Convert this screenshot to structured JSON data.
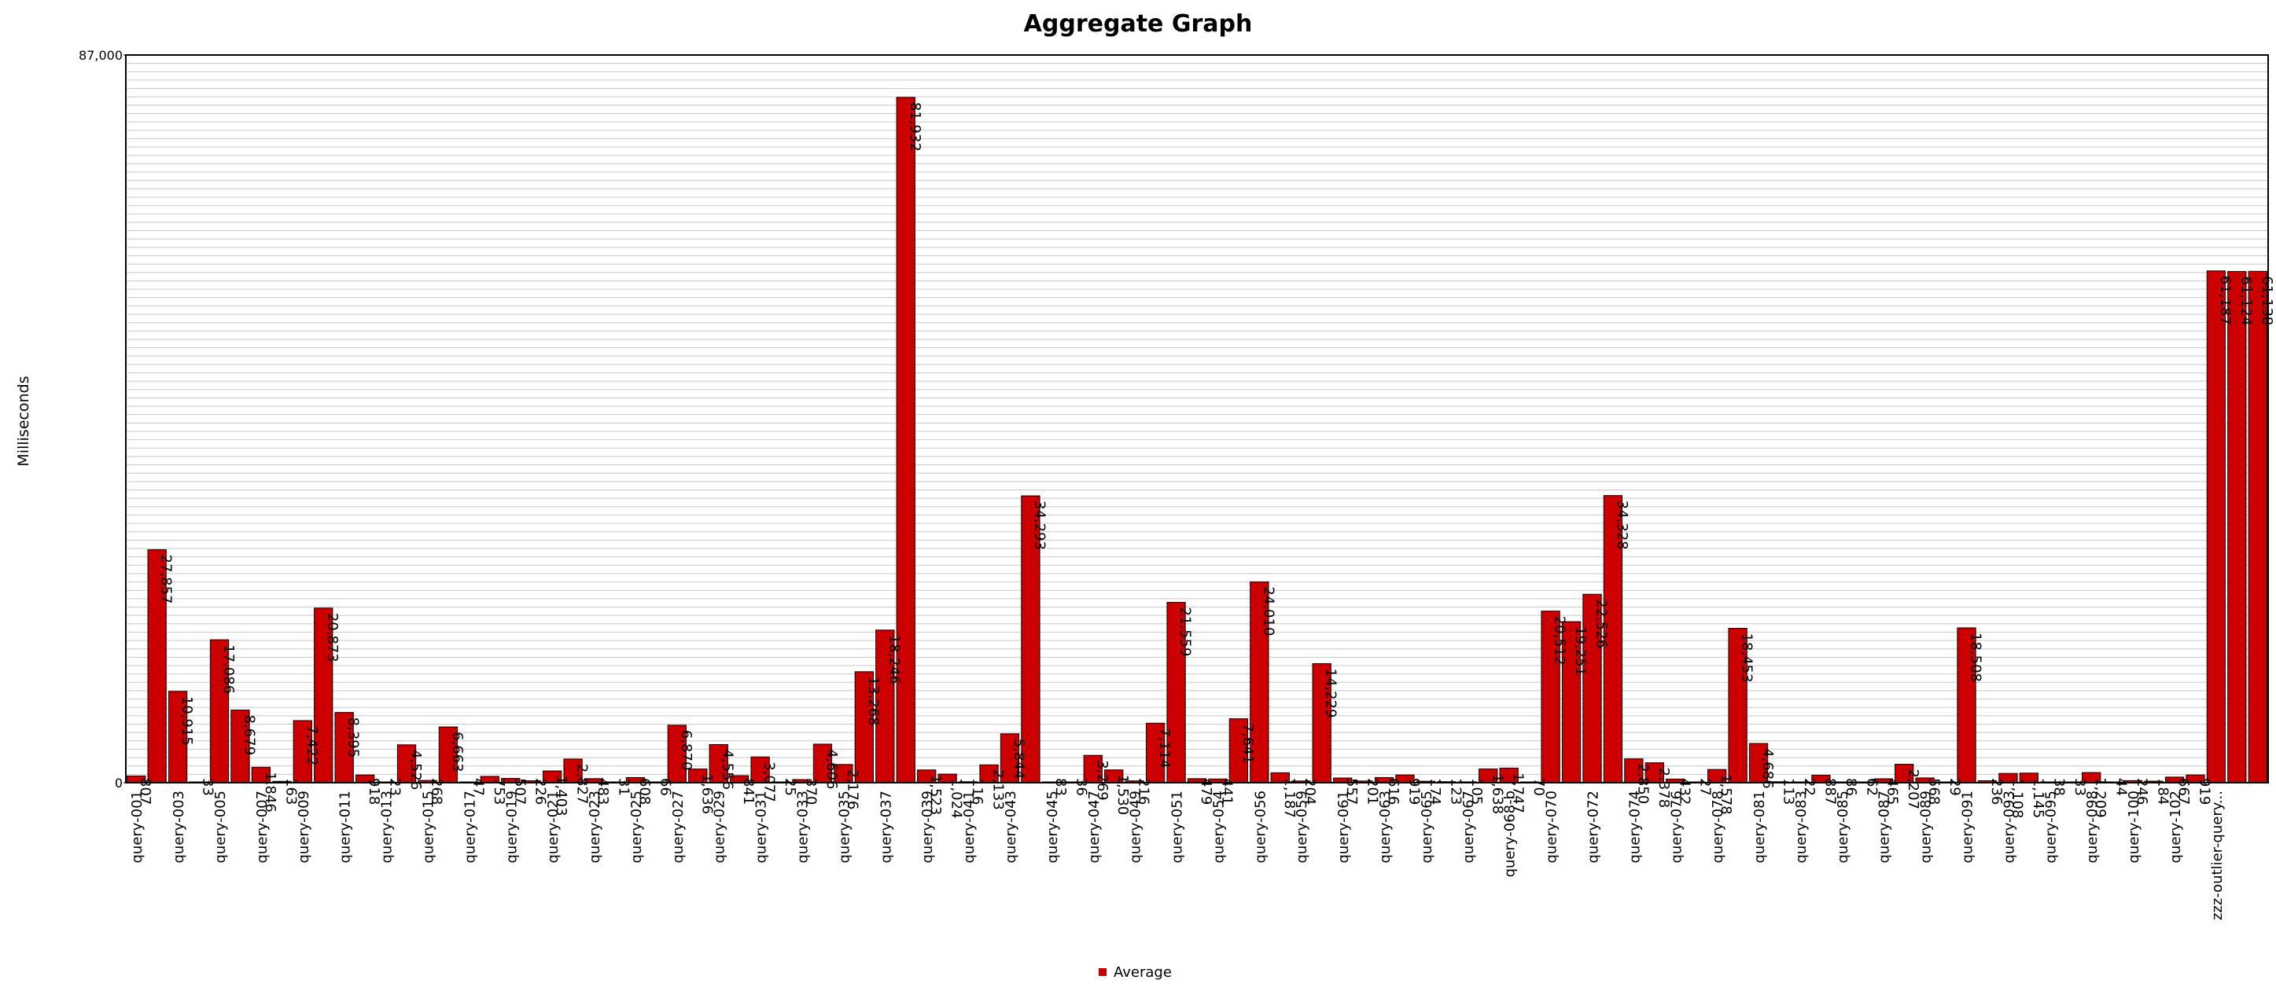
{
  "chart_data": {
    "type": "bar",
    "title": "Aggregate Graph",
    "ylabel": "Milliseconds",
    "xlabel": "",
    "ylim": [
      0,
      87000
    ],
    "grid": true,
    "legend_position": "bottom-center",
    "series": [
      {
        "name": "Average",
        "color": "#cc0000",
        "values": [
          807,
          27857,
          10915,
          33,
          17086,
          8679,
          1846,
          163,
          7422,
          20873,
          8395,
          918,
          23,
          4526,
          268,
          6663,
          47,
          753,
          507,
          226,
          1403,
          2827,
          483,
          31,
          608,
          66,
          6870,
          1636,
          4556,
          841,
          3077,
          25,
          370,
          4606,
          2176,
          13268,
          18246,
          81932,
          1523,
          1024,
          116,
          2133,
          5844,
          34293,
          83,
          36,
          3269,
          1530,
          216,
          7114,
          21559,
          479,
          441,
          7641,
          24010,
          1187,
          204,
          14229,
          557,
          201,
          616,
          919,
          174,
          123,
          105,
          1638,
          1747,
          70,
          20512,
          19251,
          22526,
          34328,
          2850,
          2378,
          432,
          27,
          1578,
          18453,
          4686,
          113,
          22,
          887,
          86,
          62,
          465,
          2207,
          568,
          29,
          18508,
          236,
          1108,
          1145,
          38,
          33,
          1209,
          44,
          246,
          184,
          667,
          919,
          61187,
          61124,
          61138
        ]
      }
    ],
    "categories": [
      "query-001",
      "",
      "query-003",
      "",
      "query-005",
      "",
      "query-007",
      "",
      "query-009",
      "",
      "query-011",
      "",
      "query-013",
      "",
      "query-015",
      "",
      "query-017",
      "",
      "query-019",
      "",
      "query-021",
      "",
      "query-023",
      "",
      "query-025",
      "",
      "query-027",
      "",
      "query-029",
      "",
      "query-031",
      "",
      "query-033",
      "",
      "query-035",
      "",
      "query-037",
      "",
      "query-039",
      "",
      "query-041",
      "",
      "query-043",
      "",
      "query-045",
      "",
      "query-047",
      "",
      "query-049",
      "",
      "query-051",
      "",
      "query-054",
      "",
      "query-056",
      "",
      "query-059",
      "",
      "query-061",
      "",
      "query-063",
      "",
      "query-065",
      "",
      "query-067",
      "",
      "query-068-b",
      "",
      "query-070",
      "",
      "query-072",
      "",
      "query-074",
      "",
      "query-076",
      "",
      "query-078",
      "",
      "query-081",
      "",
      "query-083",
      "",
      "query-085",
      "",
      "query-087",
      "",
      "query-089",
      "",
      "query-091",
      "",
      "query-093",
      "",
      "query-095",
      "",
      "query-098",
      "",
      "query-100",
      "",
      "query-102",
      "",
      "zzz-outlier-query...",
      "",
      ""
    ],
    "data_labels": [
      "807",
      "27,857",
      "10,915",
      "33",
      "17,086",
      "8,679",
      "1,846",
      "163",
      "7,422",
      "20,873",
      "8,395",
      "918",
      "23",
      "4,526",
      "268",
      "6,663",
      "47",
      "753",
      "507",
      "226",
      "1,403",
      "2,827",
      "483",
      "31",
      "608",
      "66",
      "6,870",
      "1,636",
      "4,556",
      "841",
      "3,077",
      "25",
      "370",
      "4,606",
      "2,176",
      "13,268",
      "18,246",
      "81,932",
      "1,523",
      "1,024",
      "116",
      "2,133",
      "5,844",
      "34,293",
      "83",
      "36",
      "3,269",
      "1,530",
      "216",
      "7,114",
      "21,559",
      "479",
      "441",
      "7,641",
      "24,010",
      "1,187",
      "204",
      "14,229",
      "557",
      "201",
      "616",
      "919",
      "174",
      "123",
      "105",
      "1,638",
      "1,747",
      "70",
      "20,512",
      "19,251",
      "22,526",
      "34,328",
      "2,850",
      "2,378",
      "432",
      "27",
      "1,578",
      "18,453",
      "4,686",
      "113",
      "22",
      "887",
      "86",
      "62",
      "465",
      "2,207",
      "568",
      "29",
      "18,508",
      "236",
      "1,108",
      "1,145",
      "38",
      "33",
      "1,209",
      "44",
      "246",
      "184",
      "667",
      "919",
      "61,187",
      "61,124",
      "61,138"
    ],
    "y_tick_labels": [
      "0",
      "87,000"
    ]
  }
}
